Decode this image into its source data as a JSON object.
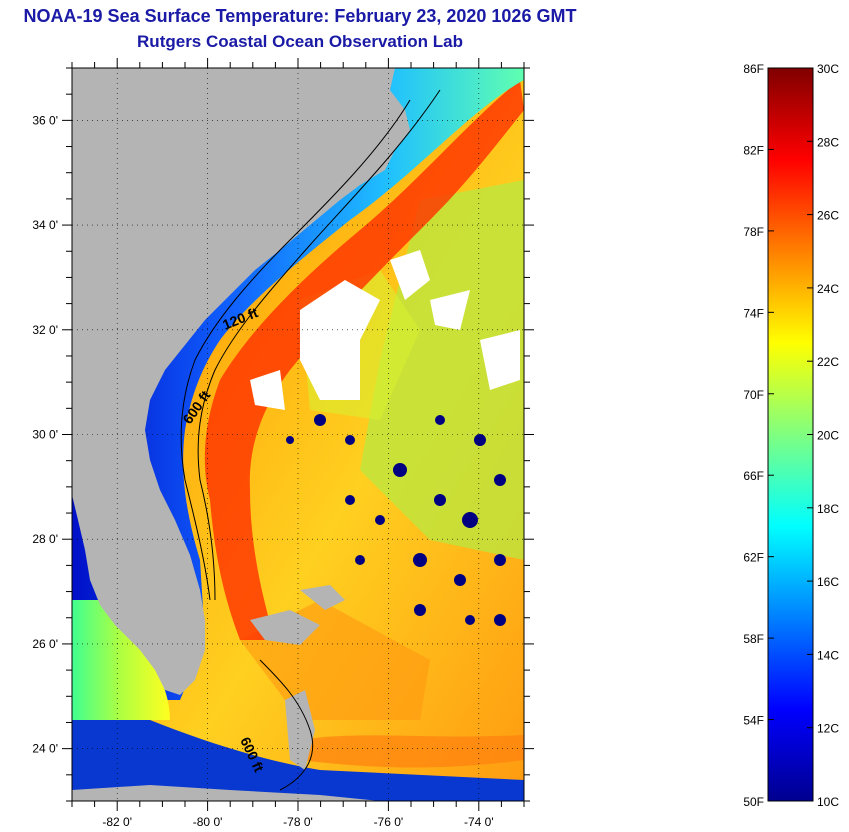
{
  "header": {
    "title": "NOAA-19 Sea Surface Temperature:  February 23, 2020 1026 GMT",
    "subtitle": "Rutgers Coastal Ocean Observation Lab"
  },
  "map": {
    "lon_range": [
      -83,
      -73
    ],
    "lat_range": [
      23,
      37
    ],
    "lat_ticks": [
      {
        "value": 36,
        "label": "36 0'"
      },
      {
        "value": 34,
        "label": "34 0'"
      },
      {
        "value": 32,
        "label": "32 0'"
      },
      {
        "value": 30,
        "label": "30 0'"
      },
      {
        "value": 28,
        "label": "28 0'"
      },
      {
        "value": 26,
        "label": "26 0'"
      },
      {
        "value": 24,
        "label": "24 0'"
      }
    ],
    "lon_ticks": [
      {
        "value": -82,
        "label": "-82 0'"
      },
      {
        "value": -80,
        "label": "-80 0'"
      },
      {
        "value": -78,
        "label": "-78 0'"
      },
      {
        "value": -76,
        "label": "-76 0'"
      },
      {
        "value": -74,
        "label": "-74 0'"
      }
    ],
    "contour_labels": [
      "120 ft",
      "600 ft",
      "600 ft"
    ],
    "colors": {
      "land": "#b4b4b4",
      "cloud": "#ffffff",
      "grid": "#000000"
    }
  },
  "colorbar": {
    "range_c": [
      10,
      30
    ],
    "fahrenheit_labels": [
      "86F",
      "82F",
      "78F",
      "74F",
      "70F",
      "66F",
      "62F",
      "58F",
      "54F",
      "50F"
    ],
    "celsius_labels": [
      "30C",
      "28C",
      "26C",
      "24C",
      "22C",
      "20C",
      "18C",
      "16C",
      "14C",
      "12C",
      "10C"
    ],
    "colors": [
      "#00008f",
      "#0000ff",
      "#0080ff",
      "#00ffff",
      "#80ff80",
      "#ffff00",
      "#ff8000",
      "#ff0000",
      "#800000"
    ]
  }
}
